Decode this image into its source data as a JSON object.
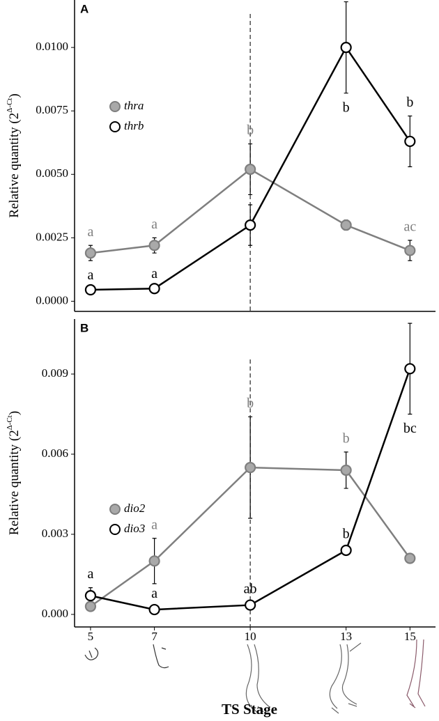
{
  "chart_data": [
    {
      "type": "line",
      "panel_label": "A",
      "y_label": {
        "text": "Relative quantity (2",
        "superscript": "Δ-Ct",
        "suffix": ")"
      },
      "x": [
        5,
        7,
        10,
        13,
        15
      ],
      "xlim": [
        4.5,
        15.8
      ],
      "ylim": [
        -0.0004,
        0.01187
      ],
      "yticks": [
        {
          "value": 0,
          "label": "0.0000"
        },
        {
          "value": 0.0025,
          "label": "0.0025"
        },
        {
          "value": 0.005,
          "label": "0.0050"
        },
        {
          "value": 0.0075,
          "label": "0.0075"
        },
        {
          "value": 0.01,
          "label": "0.0100"
        }
      ],
      "vline": 10,
      "series": [
        {
          "name": "thra",
          "color": "#7f7f7f",
          "marker_fill": "#a9a9a9",
          "values": [
            0.0019,
            0.0022,
            0.0052,
            0.003,
            0.002
          ],
          "errors": [
            0.0003,
            0.0003,
            0.001,
            0.0002,
            0.0004
          ],
          "letters": [
            "a",
            "a",
            "b",
            null,
            "ac"
          ]
        },
        {
          "name": "thrb",
          "color": "#000000",
          "marker_fill": "#ffffff",
          "values": [
            0.00045,
            0.0005,
            0.003,
            0.01,
            0.0063
          ],
          "errors": [
            5e-05,
            5e-05,
            0.0008,
            0.0018,
            0.001
          ],
          "letters": [
            "a",
            "a",
            null,
            "b",
            "b"
          ]
        }
      ]
    },
    {
      "type": "line",
      "panel_label": "B",
      "y_label": {
        "text": "Relative quantity (2",
        "superscript": "Δ-Ct",
        "suffix": ")"
      },
      "x": [
        5,
        7,
        10,
        13,
        15
      ],
      "xlim": [
        4.5,
        15.8
      ],
      "xticks": [
        5,
        7,
        10,
        13,
        15
      ],
      "x_label": "TS Stage",
      "ylim": [
        -0.00047,
        0.01106
      ],
      "yticks": [
        {
          "value": 0,
          "label": "0.000"
        },
        {
          "value": 0.003,
          "label": "0.003"
        },
        {
          "value": 0.006,
          "label": "0.006"
        },
        {
          "value": 0.009,
          "label": "0.009"
        }
      ],
      "vline": 10,
      "series": [
        {
          "name": "dio2",
          "color": "#7f7f7f",
          "marker_fill": "#a9a9a9",
          "values": [
            0.0003,
            0.002,
            0.0055,
            0.0054,
            0.0021
          ],
          "errors": [
            5e-05,
            0.00085,
            0.0019,
            0.00068,
            0.0001
          ],
          "letters": [
            null,
            "a",
            "b",
            "b",
            null
          ]
        },
        {
          "name": "dio3",
          "color": "#000000",
          "marker_fill": "#ffffff",
          "values": [
            0.0007,
            0.00018,
            0.00035,
            0.0024,
            0.0092
          ],
          "errors": [
            0.0003,
            0.0001,
            0.0001,
            0.0001,
            0.0017
          ],
          "letters": [
            "a",
            "a",
            "ab",
            "b",
            "bc"
          ]
        }
      ]
    }
  ]
}
